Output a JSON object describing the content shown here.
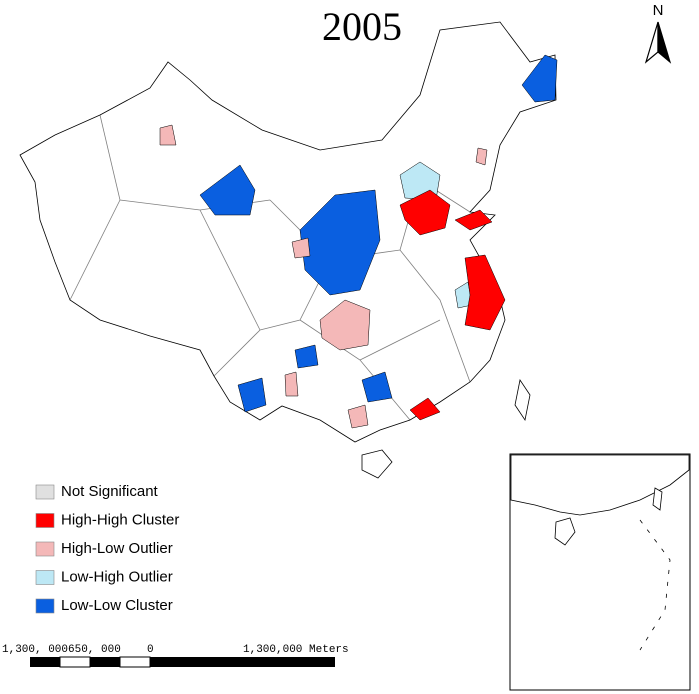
{
  "title": "2005",
  "north_arrow": "N",
  "legend": [
    {
      "label": "Not Significant",
      "color": "#e0e0e0"
    },
    {
      "label": "High-High Cluster",
      "color": "#ff0000"
    },
    {
      "label": "High-Low Outlier",
      "color": "#f4b8b8"
    },
    {
      "label": "Low-High Outlier",
      "color": "#bde8f5"
    },
    {
      "label": "Low-Low Cluster",
      "color": "#0a5fe0"
    }
  ],
  "scale_bar": {
    "labels": [
      "1,300, 000",
      "650, 000",
      "0",
      "1,300,000 Meters"
    ]
  }
}
